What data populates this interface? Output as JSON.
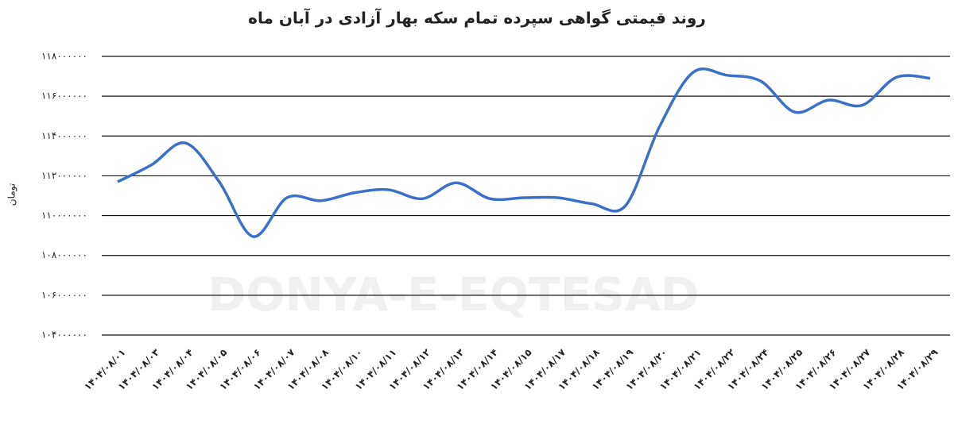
{
  "chart_data": {
    "type": "line",
    "title": "روند قیمتی گواهی سپرده تمام سکه بهار آزادی در آبان ماه",
    "y_label": "تومان",
    "watermark": "DONYA-E-EQTESAD",
    "categories": [
      "۱۴۰۴/۰۸/۰۱",
      "۱۴۰۴/۰۸/۰۳",
      "۱۴۰۴/۰۸/۰۴",
      "۱۴۰۴/۰۸/۰۵",
      "۱۴۰۴/۰۸/۰۶",
      "۱۴۰۴/۰۸/۰۷",
      "۱۴۰۴/۰۸/۰۸",
      "۱۴۰۴/۰۸/۱۰",
      "۱۴۰۴/۰۸/۱۱",
      "۱۴۰۴/۰۸/۱۲",
      "۱۴۰۴/۰۸/۱۳",
      "۱۴۰۴/۰۸/۱۴",
      "۱۴۰۴/۰۸/۱۵",
      "۱۴۰۴/۰۸/۱۷",
      "۱۴۰۴/۰۸/۱۸",
      "۱۴۰۴/۰۸/۱۹",
      "۱۴۰۴/۰۸/۲۰",
      "۱۴۰۴/۰۸/۲۱",
      "۱۴۰۴/۰۸/۲۲",
      "۱۴۰۴/۰۸/۲۴",
      "۱۴۰۴/۰۸/۲۵",
      "۱۴۰۴/۰۸/۲۶",
      "۱۴۰۴/۰۸/۲۷",
      "۱۴۰۴/۰۸/۲۸",
      "۱۴۰۴/۰۸/۲۹"
    ],
    "series": [
      {
        "color": "#3b6fc8",
        "values": [
          111700000,
          112550000,
          113650000,
          111700000,
          108950000,
          110900000,
          110750000,
          111150000,
          111300000,
          110850000,
          111650000,
          110850000,
          110900000,
          110900000,
          110600000,
          110500000,
          114450000,
          117200000,
          117050000,
          116750000,
          115200000,
          115800000,
          115550000,
          116950000,
          116900000
        ]
      }
    ],
    "ylim": [
      104000000,
      118000000
    ],
    "yticks": [
      {
        "value": 104000000,
        "label": "۱۰۴۰۰۰۰۰۰"
      },
      {
        "value": 106000000,
        "label": "۱۰۶۰۰۰۰۰۰"
      },
      {
        "value": 108000000,
        "label": "۱۰۸۰۰۰۰۰۰"
      },
      {
        "value": 110000000,
        "label": "۱۱۰۰۰۰۰۰۰"
      },
      {
        "value": 112000000,
        "label": "۱۱۲۰۰۰۰۰۰"
      },
      {
        "value": 114000000,
        "label": "۱۱۴۰۰۰۰۰۰"
      },
      {
        "value": 116000000,
        "label": "۱۱۶۰۰۰۰۰۰"
      },
      {
        "value": 118000000,
        "label": "۱۱۸۰۰۰۰۰۰"
      }
    ],
    "grid": true
  }
}
